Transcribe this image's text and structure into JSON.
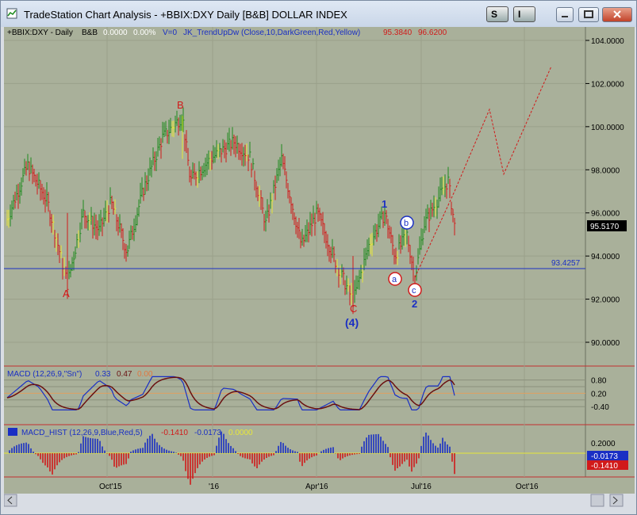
{
  "window": {
    "title": "TradeStation Chart Analysis - +BBIX:DXY Daily [B&B] DOLLAR INDEX",
    "btn_s": "S",
    "btn_i": "I"
  },
  "legend": {
    "symbol": "+BBIX:DXY - Daily",
    "bb": "B&B",
    "change": "0.0000",
    "pct": "0.00%",
    "volume": "V=0",
    "indicator": "JK_TrendUpDw (Close,10,DarkGreen,Red,Yellow)",
    "val1": "95.3840",
    "val2": "96.6200"
  },
  "price_axis": {
    "ticks": [
      "104.0000",
      "102.0000",
      "100.0000",
      "98.0000",
      "96.0000",
      "94.0000",
      "92.0000",
      "90.0000"
    ],
    "last_price": "95.5170",
    "hline_label": "93.4257"
  },
  "waves": {
    "A": "A",
    "B": "B",
    "C": "C",
    "four": "(4)",
    "one": "1",
    "two": "2",
    "a": "a",
    "b": "b",
    "c": "c"
  },
  "macd": {
    "label": "MACD (12,26,9,\"Sn\")",
    "v1": "0.33",
    "v2": "0.47",
    "v3": "0.00",
    "ticks": [
      "0.80",
      "0.20",
      "-0.40"
    ]
  },
  "hist": {
    "label": "MACD_HIST (12,26,9,Blue,Red,5)",
    "v1": "-0.1410",
    "v2": "-0.0173",
    "v3": "0.0000",
    "ticks": [
      "0.2000"
    ],
    "badge_blue": "-0.0173",
    "badge_red": "-0.1410"
  },
  "date_axis": [
    "Oct'15",
    "'16",
    "Apr'16",
    "Jul'16",
    "Oct'16"
  ],
  "colors": {
    "bg": "#a9b09a",
    "green": "#1e8a1e",
    "red": "#d11a1a",
    "yellow": "#e8e838",
    "blue": "#1a2fc4"
  },
  "chart_data": {
    "type": "bar",
    "title": "DOLLAR INDEX",
    "ylim": [
      89,
      104.6
    ],
    "key_points": [
      {
        "label": "A",
        "value": 92.7
      },
      {
        "label": "B",
        "value": 100.5
      },
      {
        "label": "C",
        "value": 91.9
      },
      {
        "label": "1",
        "value": 96.0
      },
      {
        "label": "2",
        "value": 93.0
      }
    ],
    "projection": [
      95.5,
      100.8,
      97.8,
      102.8
    ],
    "horizontal_line": 93.4257,
    "last_price": 95.517
  }
}
